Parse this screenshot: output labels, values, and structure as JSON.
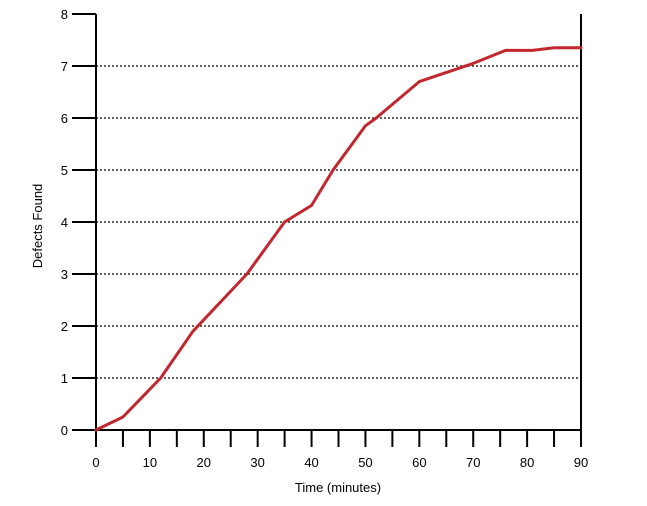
{
  "chart_data": {
    "type": "line",
    "title": "",
    "xlabel": "Time (minutes)",
    "ylabel": "Defects Found",
    "xlim": [
      0,
      90
    ],
    "ylim": [
      0,
      8
    ],
    "x_tick_labels": [
      "0",
      "10",
      "20",
      "30",
      "40",
      "50",
      "60",
      "70",
      "80",
      "90"
    ],
    "y_tick_labels": [
      "0",
      "1",
      "2",
      "3",
      "4",
      "5",
      "6",
      "7",
      "8"
    ],
    "x_minor_tick_step": 5,
    "grid": "horizontal dotted",
    "series": [
      {
        "color": "#c1272d",
        "x": [
          0,
          5,
          12,
          18,
          23,
          28,
          35,
          40,
          44,
          50,
          52,
          60,
          70,
          76,
          81,
          85,
          90
        ],
        "y": [
          0,
          0.25,
          1.0,
          1.9,
          2.45,
          3.0,
          4.0,
          4.32,
          5.0,
          5.85,
          6.0,
          6.7,
          7.05,
          7.3,
          7.3,
          7.35,
          7.35
        ]
      }
    ]
  }
}
